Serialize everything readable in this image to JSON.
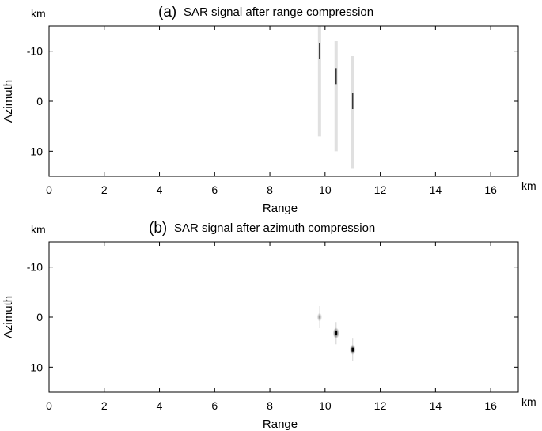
{
  "chart_data": [
    {
      "type": "heatmap",
      "panel_letter": "(a)",
      "title": "SAR signal after range compression",
      "xlabel": "Range",
      "ylabel": "Azimuth",
      "x_unit": "km",
      "y_unit": "km",
      "xlim": [
        0,
        17
      ],
      "ylim": [
        -15,
        15
      ],
      "y_inverted": true,
      "xticks": [
        0,
        2,
        4,
        6,
        8,
        10,
        12,
        14,
        16
      ],
      "yticks": [
        -10,
        0,
        10
      ],
      "grid": false,
      "colormap": "gray-reversed",
      "features": [
        {
          "kind": "range-line",
          "range_km": 9.8,
          "azimuth_start_km": -15,
          "azimuth_end_km": 7.0,
          "peak_azimuth_km": -10
        },
        {
          "kind": "range-line",
          "range_km": 10.4,
          "azimuth_start_km": -12,
          "azimuth_end_km": 10.0,
          "peak_azimuth_km": -5
        },
        {
          "kind": "range-line",
          "range_km": 11.0,
          "azimuth_start_km": -9,
          "azimuth_end_km": 13.5,
          "peak_azimuth_km": 0
        }
      ]
    },
    {
      "type": "heatmap",
      "panel_letter": "(b)",
      "title": "SAR signal after azimuth compression",
      "xlabel": "Range",
      "ylabel": "Azimuth",
      "x_unit": "km",
      "y_unit": "km",
      "xlim": [
        0,
        17
      ],
      "ylim": [
        -15,
        15
      ],
      "y_inverted": true,
      "xticks": [
        0,
        2,
        4,
        6,
        8,
        10,
        12,
        14,
        16
      ],
      "yticks": [
        -10,
        0,
        10
      ],
      "grid": false,
      "colormap": "gray-reversed",
      "features": [
        {
          "kind": "point-target",
          "range_km": 9.8,
          "azimuth_km": 0.0,
          "intensity": 0.2
        },
        {
          "kind": "point-target",
          "range_km": 10.4,
          "azimuth_km": 3.2,
          "intensity": 1.0
        },
        {
          "kind": "point-target",
          "range_km": 11.0,
          "azimuth_km": 6.5,
          "intensity": 0.85
        }
      ]
    }
  ]
}
